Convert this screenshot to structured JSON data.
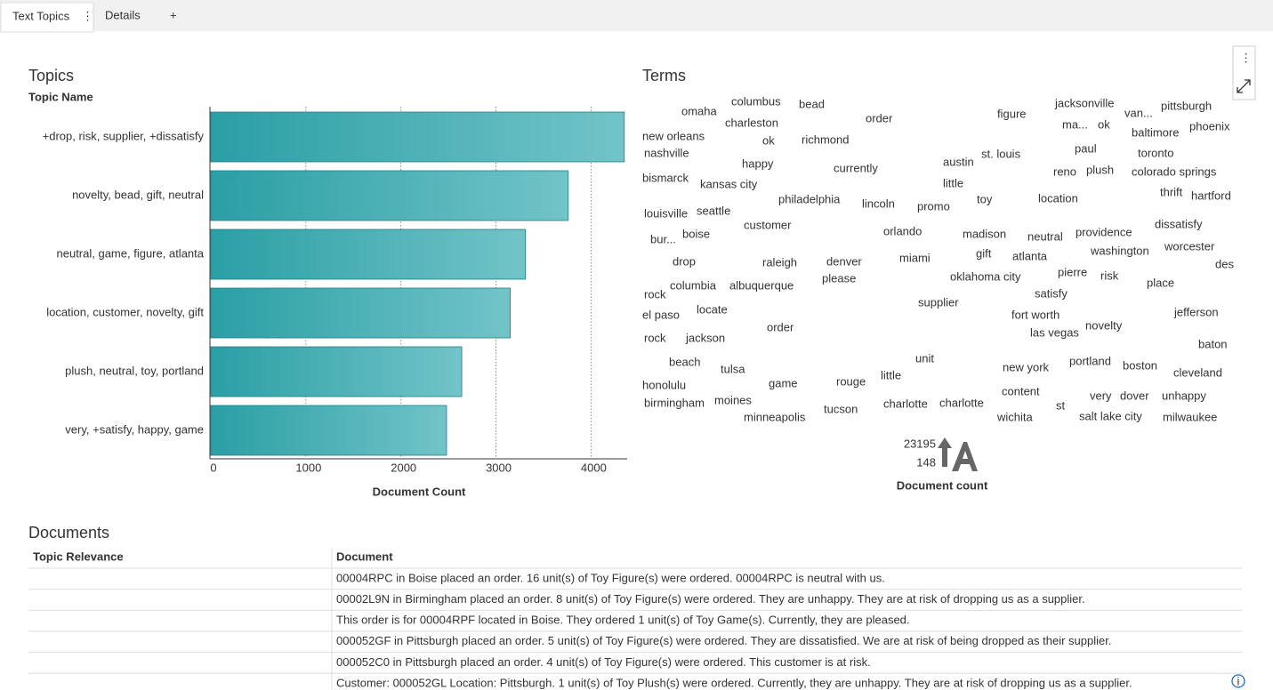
{
  "tabs": [
    "Text Topics",
    "Details"
  ],
  "chart_data": {
    "type": "bar",
    "orientation": "horizontal",
    "title": "Topics",
    "y_label": "Topic Name",
    "x_label": "Document Count",
    "categories": [
      "+drop, risk, supplier, +dissatisfy",
      "novelty, bead, gift, neutral",
      "neutral, game, figure, atlanta",
      "location, customer, novelty, gift",
      "plush, neutral, toy, portland",
      "very, +satisfy, happy, game"
    ],
    "values": [
      4350,
      3760,
      3310,
      3150,
      2640,
      2480
    ],
    "color": "#2a9fa5",
    "xlim": [
      0,
      4380
    ],
    "xticks": [
      0,
      1000,
      2000,
      3000,
      4000
    ],
    "grid": true
  },
  "terms": {
    "title": "Terms",
    "words": [
      "omaha",
      "columbus",
      "bead",
      "order",
      "figure",
      "jacksonville",
      "pittsburgh",
      "van...",
      "charleston",
      "ma...",
      "ok",
      "baltimore",
      "phoenix",
      "new orleans",
      "ok",
      "richmond",
      "nashville",
      "paul",
      "toronto",
      "st. louis",
      "austin",
      "currently",
      "happy",
      "reno",
      "plush",
      "colorado springs",
      "bismarck",
      "kansas city",
      "little",
      "toy",
      "location",
      "thrift",
      "hartford",
      "philadelphia",
      "lincoln",
      "promo",
      "louisville",
      "seattle",
      "customer",
      "dissatisfy",
      "providence",
      "bur...",
      "boise",
      "orlando",
      "madison",
      "neutral",
      "washington",
      "worcester",
      "drop",
      "raleigh",
      "denver",
      "miami",
      "gift",
      "atlanta",
      "des",
      "please",
      "oklahoma city",
      "pierre",
      "risk",
      "place",
      "columbia",
      "albuquerque",
      "rock",
      "satisfy",
      "supplier",
      "locate",
      "fort worth",
      "jefferson",
      "el paso",
      "order",
      "novelty",
      "las vegas",
      "rock",
      "jackson",
      "baton",
      "unit",
      "beach",
      "tulsa",
      "portland",
      "boston",
      "new york",
      "cleveland",
      "little",
      "rouge",
      "game",
      "honolulu",
      "content",
      "very",
      "dover",
      "unhappy",
      "birmingham",
      "moines",
      "charlotte",
      "charlotte",
      "st",
      "tucson",
      "minneapolis",
      "wichita",
      "salt lake city",
      "milwaukee"
    ],
    "legend": {
      "max": "23195",
      "min": "148",
      "label": "Document count"
    }
  },
  "documents": {
    "title": "Documents",
    "columns": [
      "Topic Relevance",
      "Document"
    ],
    "rows": [
      "00004RPC in Boise placed an order. 16 unit(s) of Toy Figure(s) were ordered. 00004RPC is neutral with us.",
      "00002L9N in Birmingham placed an order. 8 unit(s) of Toy Figure(s) were ordered. They are unhappy. They are at risk of dropping us as a supplier.",
      "This order is for 00004RPF located in Boise. They ordered 1 unit(s) of Toy Game(s). Currently, they are pleased.",
      "000052GF in Pittsburgh placed an order. 5 unit(s) of Toy Figure(s) were ordered. They are dissatisfied. We are at risk of being dropped as their supplier.",
      "000052C0 in Pittsburgh placed an order. 4 unit(s) of Toy Figure(s) were ordered. This customer is at risk.",
      "Customer: 000052GL Location: Pittsburgh. 1 unit(s) of Toy Plush(s) were ordered. Currently, they are unhappy. They are at risk of dropping us as a supplier."
    ]
  }
}
